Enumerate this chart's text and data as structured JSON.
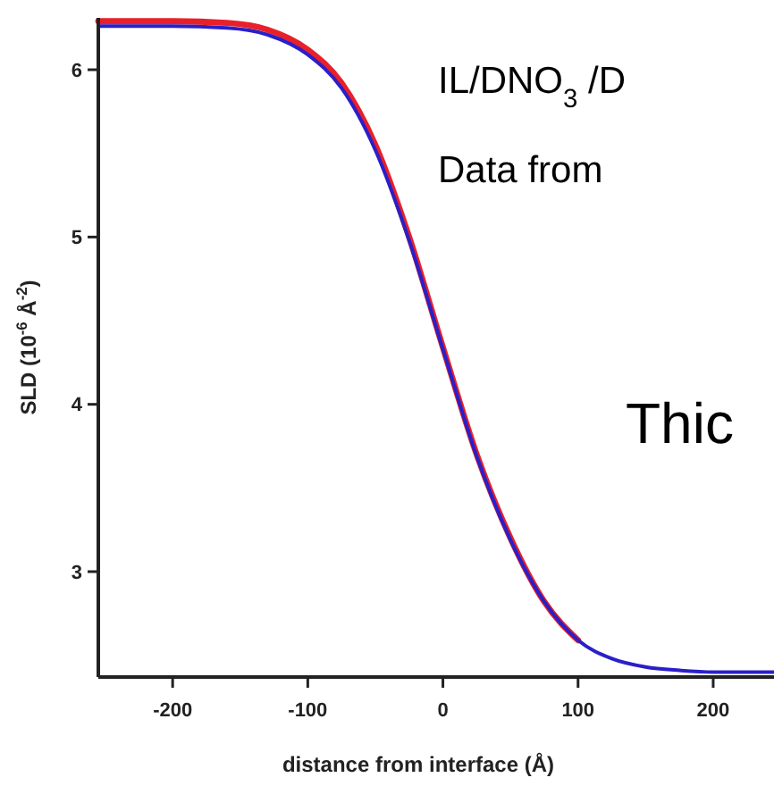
{
  "chart_data": {
    "type": "line",
    "xlabel": "distance from interface (Å)",
    "ylabel": "SLD (10$^{-6}$ Å$^{-2}$)",
    "x": [
      -255,
      -200,
      -160,
      -130,
      -100,
      -75,
      -50,
      -25,
      0,
      25,
      50,
      75,
      100,
      125,
      150,
      175,
      200,
      245
    ],
    "series": [
      {
        "color": "#e8202a",
        "values": [
          6.29,
          6.29,
          6.28,
          6.24,
          6.12,
          5.92,
          5.55,
          5.0,
          4.34,
          3.7,
          3.2,
          2.82,
          2.59,
          null,
          null,
          null,
          null,
          null
        ]
      },
      {
        "color": "#2a1fc8",
        "values": [
          6.26,
          6.26,
          6.25,
          6.21,
          6.09,
          5.89,
          5.52,
          4.98,
          4.33,
          3.69,
          3.19,
          2.82,
          2.59,
          2.48,
          2.43,
          2.41,
          2.4,
          2.4
        ]
      }
    ],
    "xlim": [
      -255,
      245
    ],
    "ylim": [
      2.37,
      6.31
    ],
    "xticks": [
      -200,
      -100,
      0,
      100,
      200
    ],
    "yticks": [
      3,
      4,
      5,
      6
    ],
    "grid": false,
    "marker": "none",
    "line_style": "solid",
    "annotations": [
      "IL/DNO$_{3}$ /D",
      "Data from",
      "Thic"
    ]
  }
}
